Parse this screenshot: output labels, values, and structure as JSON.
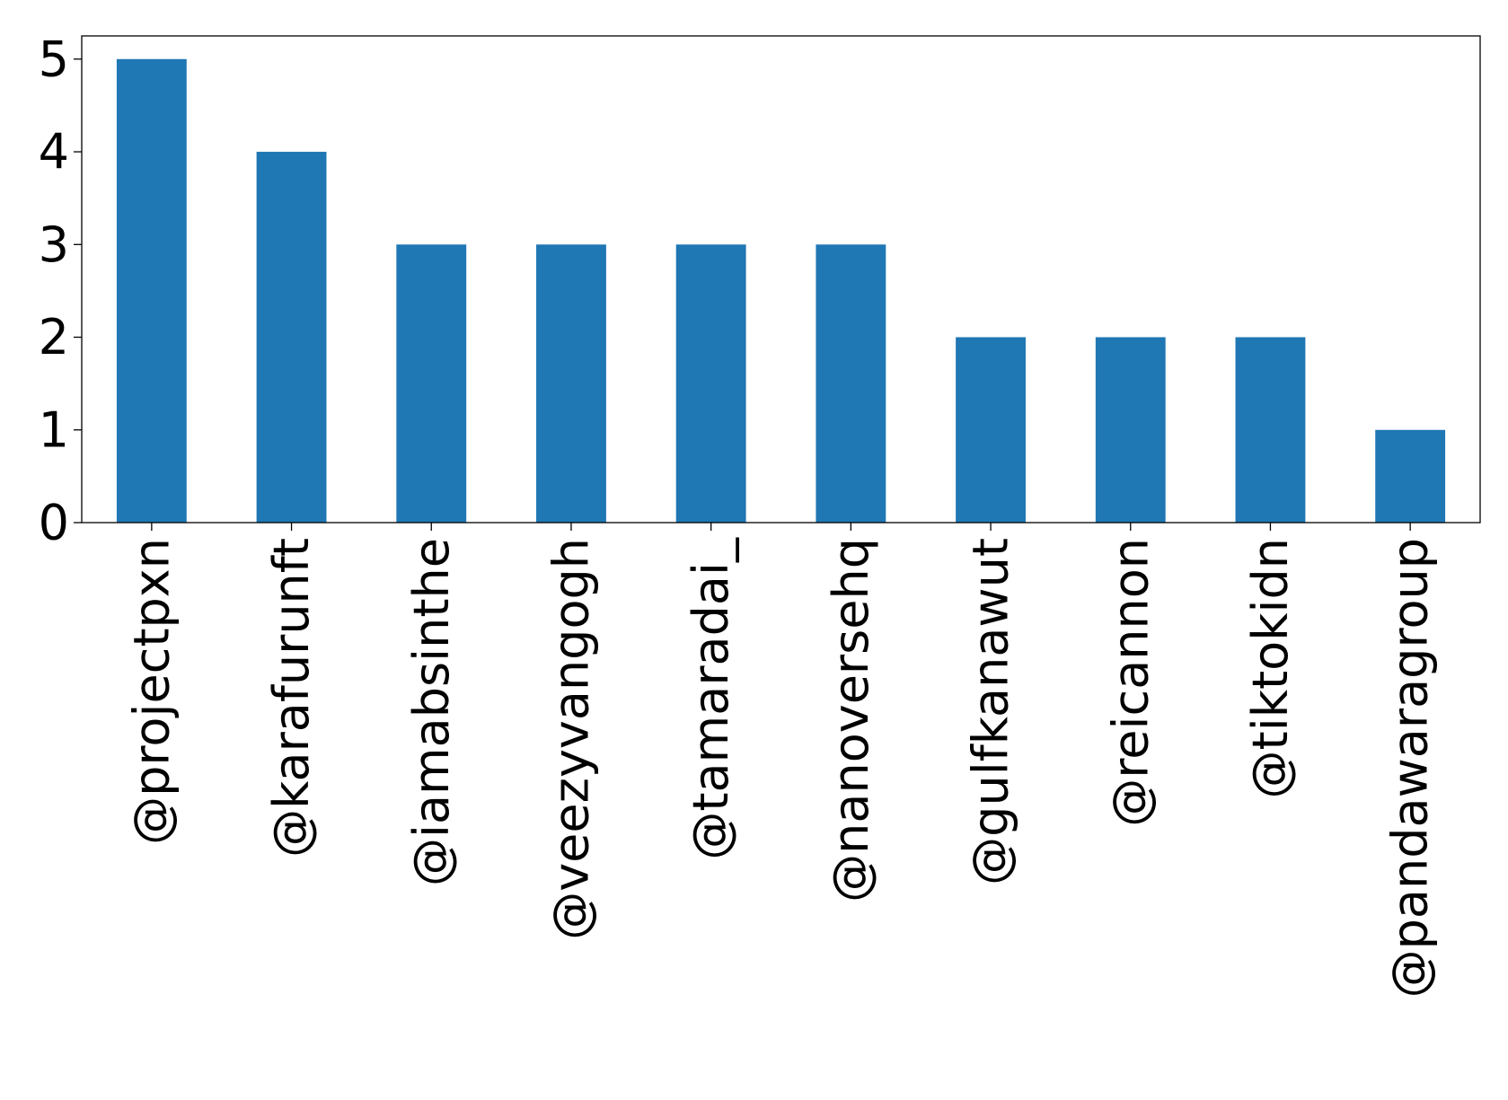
{
  "chart_data": {
    "type": "bar",
    "title": "",
    "xlabel": "",
    "ylabel": "",
    "categories": [
      "@projectpxn",
      "@karafurunft",
      "@iamabsinthe",
      "@veezyvangogh",
      "@tamaradai_",
      "@nanoversehq",
      "@gulfkanawut",
      "@reicannon",
      "@tiktokidn",
      "@pandawaragroup"
    ],
    "values": [
      5,
      4,
      3,
      3,
      3,
      3,
      2,
      2,
      2,
      1
    ],
    "ylim": [
      0,
      5.25
    ],
    "yticks": [
      0,
      1,
      2,
      3,
      4,
      5
    ],
    "grid": false,
    "legend": "none",
    "bar_color": "#1f77b4"
  }
}
